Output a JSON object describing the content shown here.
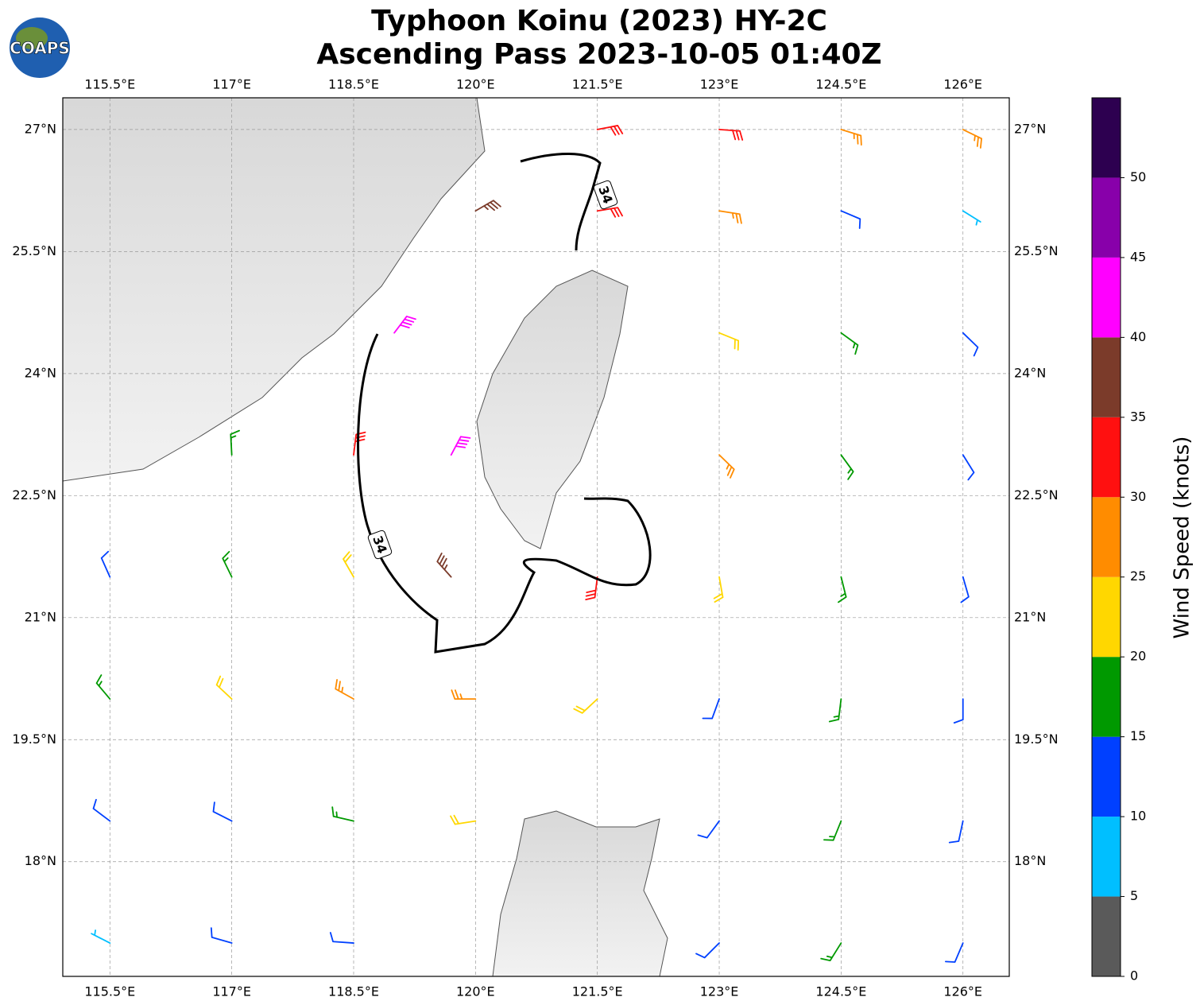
{
  "chart_data": {
    "type": "barbs",
    "logo": "COAPS",
    "title": "Typhoon Koinu (2023) HY-2C",
    "subtitle": "Ascending Pass 2023-10-05 01:40Z",
    "xlim": [
      114.92,
      126.57
    ],
    "ylim": [
      16.59,
      27.39
    ],
    "xticks": [
      {
        "value": 115.5,
        "label": "115.5°E"
      },
      {
        "value": 117,
        "label": "117°E"
      },
      {
        "value": 118.5,
        "label": "118.5°E"
      },
      {
        "value": 120,
        "label": "120°E"
      },
      {
        "value": 121.5,
        "label": "121.5°E"
      },
      {
        "value": 123,
        "label": "123°E"
      },
      {
        "value": 124.5,
        "label": "124.5°E"
      },
      {
        "value": 126,
        "label": "126°E"
      }
    ],
    "yticks": [
      {
        "value": 18,
        "label": "18°N"
      },
      {
        "value": 19.5,
        "label": "19.5°N"
      },
      {
        "value": 21,
        "label": "21°N"
      },
      {
        "value": 22.5,
        "label": "22.5°N"
      },
      {
        "value": 24,
        "label": "24°N"
      },
      {
        "value": 25.5,
        "label": "25.5°N"
      },
      {
        "value": 27,
        "label": "27°N"
      }
    ],
    "grid": true,
    "contour_level": 34,
    "colorbar": {
      "label": "Wind Speed (knots)",
      "levels": [
        0,
        5,
        10,
        15,
        20,
        25,
        30,
        35,
        40,
        45,
        50,
        55
      ],
      "colors": [
        "#5a5a5a",
        "#00bfff",
        "#0040ff",
        "#009900",
        "#ffd700",
        "#ff8c00",
        "#ff1010",
        "#7b3b2a",
        "#ff00ff",
        "#8800aa",
        "#2d0050"
      ],
      "ticks": [
        0,
        5,
        10,
        15,
        20,
        25,
        30,
        35,
        40,
        45,
        50
      ]
    },
    "barbs": {
      "lon": [
        121.5,
        123,
        124.5,
        126,
        120,
        121.5,
        123,
        124.5,
        126,
        119,
        123,
        124.5,
        126,
        117,
        118.5,
        119.7,
        123,
        124.5,
        126,
        115.5,
        117,
        118.5,
        119.7,
        121.5,
        123,
        124.5,
        126,
        115.5,
        117,
        118.5,
        120,
        121.5,
        123,
        124.5,
        126,
        115.5,
        117,
        118.5,
        120,
        123,
        124.5,
        126,
        115.5,
        117,
        118.5,
        123,
        124.5,
        126
      ],
      "lat": [
        27,
        27,
        27,
        27,
        26,
        26,
        26,
        26,
        26,
        24.5,
        24.5,
        24.5,
        24.5,
        23,
        23,
        23,
        23,
        23,
        23,
        21.5,
        21.5,
        21.5,
        21.5,
        21.5,
        21.5,
        21.5,
        21.5,
        20,
        20,
        20,
        20,
        20,
        20,
        20,
        20,
        18.5,
        18.5,
        18.5,
        18.5,
        18.5,
        18.5,
        18.5,
        17,
        17,
        17,
        17,
        17,
        17
      ],
      "speed": [
        32,
        30,
        27,
        25,
        37,
        33,
        27,
        13,
        9,
        42,
        22,
        17,
        13,
        17,
        32,
        41,
        27,
        18,
        13,
        13,
        17,
        23,
        38,
        33,
        23,
        18,
        13,
        16,
        20,
        27,
        28,
        22,
        13,
        17,
        13,
        13,
        12,
        17,
        21,
        12,
        17,
        13,
        8,
        12,
        13,
        13,
        16,
        13
      ],
      "direction": [
        79,
        94,
        107,
        116,
        60,
        81,
        99,
        113,
        122,
        37,
        112,
        126,
        134,
        357,
        7,
        28,
        134,
        144,
        148,
        336,
        334,
        330,
        318,
        187,
        170,
        166,
        164,
        320,
        313,
        299,
        270,
        227,
        200,
        187,
        180,
        307,
        297,
        283,
        261,
        216,
        202,
        192,
        297,
        286,
        274,
        225,
        212,
        203
      ]
    }
  }
}
